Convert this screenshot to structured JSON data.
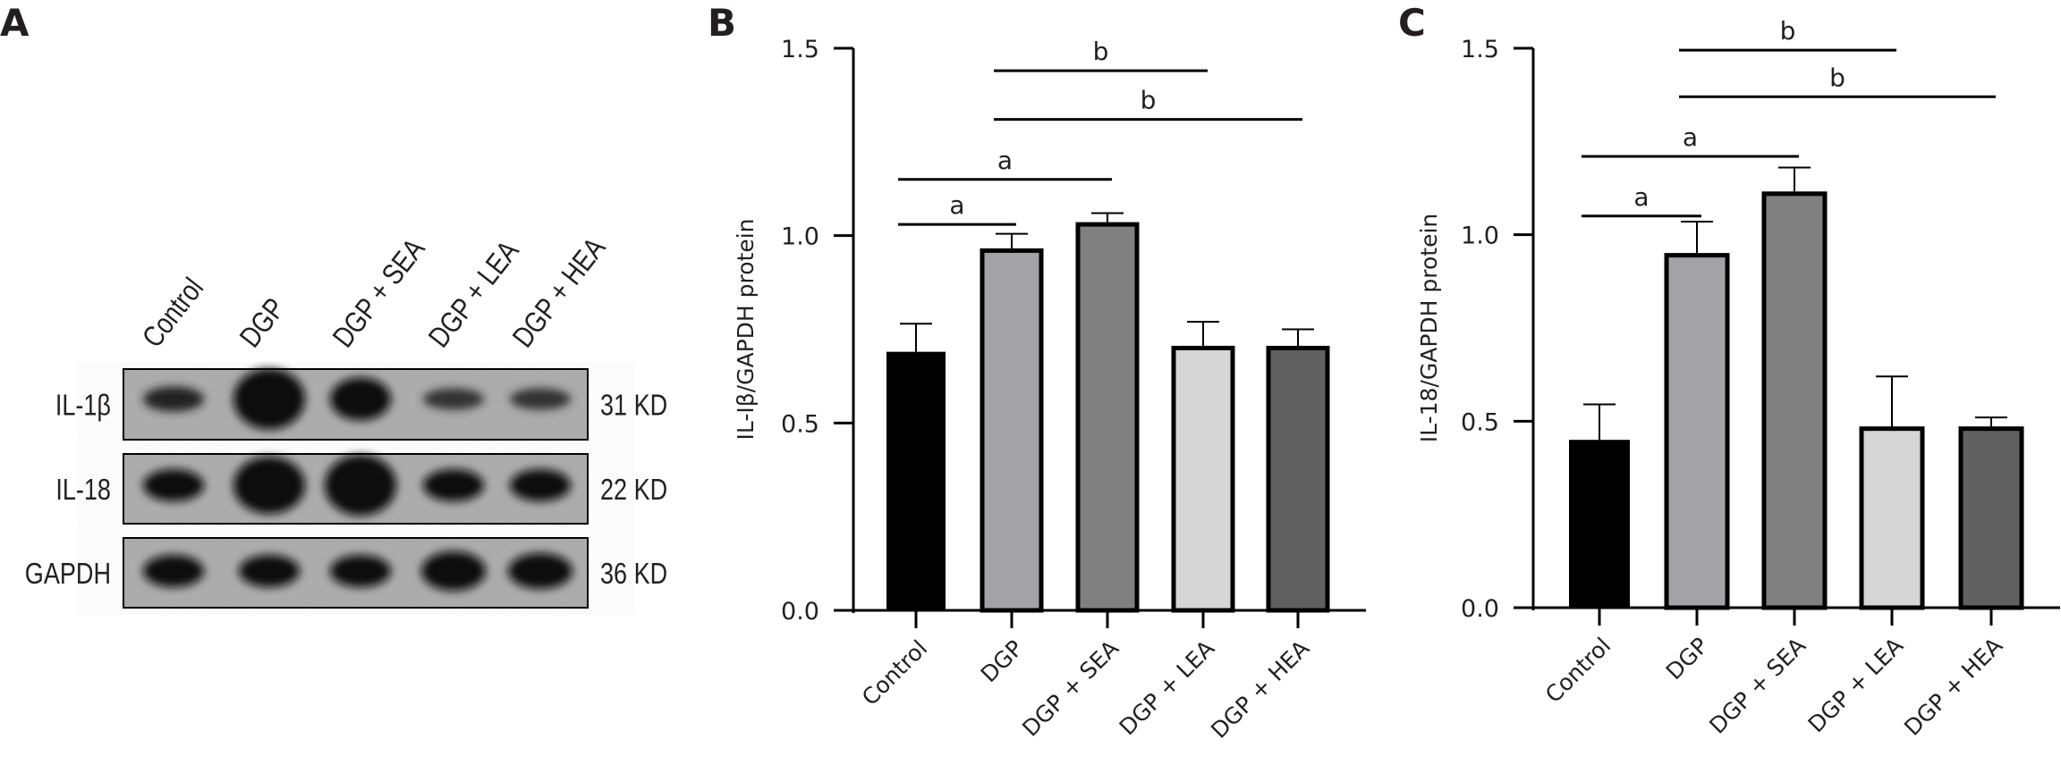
{
  "panels": {
    "a": "A",
    "b": "B",
    "c": "C"
  },
  "blot": {
    "lanes": [
      "Control",
      "DGP",
      "DGP + SEA",
      "DGP + LEA",
      "DGP + HEA"
    ],
    "rows": [
      {
        "protein": "IL-1β",
        "size": "31 KD"
      },
      {
        "protein": "IL-18",
        "size": "22 KD"
      },
      {
        "protein": "GAPDH",
        "size": "36 KD"
      }
    ]
  },
  "chart_data": [
    {
      "type": "bar",
      "panel": "B",
      "title": "",
      "xlabel": "",
      "ylabel": "IL-Iβ/GAPDH protein",
      "ylim": [
        0,
        1.5
      ],
      "yticks": [
        "0.0",
        "0.5",
        "1.0",
        "1.5"
      ],
      "categories": [
        "Control",
        "DGP",
        "DGP + SEA",
        "DGP + LEA",
        "DGP + HEA"
      ],
      "values": [
        0.69,
        0.96,
        1.03,
        0.7,
        0.7
      ],
      "errors": [
        0.075,
        0.045,
        0.03,
        0.07,
        0.05
      ],
      "colors": [
        "#000000",
        "#a3a3a7",
        "#808080",
        "#d6d6d6",
        "#606060"
      ],
      "grid": false,
      "significance": [
        {
          "from": 0,
          "to": 1,
          "y": 1.03,
          "label": "a"
        },
        {
          "from": 0,
          "to": 2,
          "y": 1.15,
          "label": "a"
        },
        {
          "from": 1,
          "to": 4,
          "y": 1.31,
          "label": "b"
        },
        {
          "from": 1,
          "to": 3,
          "y": 1.44,
          "label": "b"
        }
      ]
    },
    {
      "type": "bar",
      "panel": "C",
      "title": "",
      "xlabel": "",
      "ylabel": "IL-18/GAPDH protein",
      "ylim": [
        0,
        1.5
      ],
      "yticks": [
        "0.0",
        "0.5",
        "1.0",
        "1.5"
      ],
      "categories": [
        "Control",
        "DGP",
        "DGP + SEA",
        "DGP + LEA",
        "DGP + HEA"
      ],
      "values": [
        0.45,
        0.945,
        1.11,
        0.48,
        0.48
      ],
      "errors": [
        0.095,
        0.09,
        0.07,
        0.14,
        0.03
      ],
      "colors": [
        "#000000",
        "#a3a3a7",
        "#808080",
        "#d6d6d6",
        "#606060"
      ],
      "grid": false,
      "significance": [
        {
          "from": 0,
          "to": 1,
          "y": 1.05,
          "label": "a"
        },
        {
          "from": 0,
          "to": 2,
          "y": 1.21,
          "label": "a"
        },
        {
          "from": 1,
          "to": 4,
          "y": 1.37,
          "label": "b"
        },
        {
          "from": 1,
          "to": 3,
          "y": 1.495,
          "label": "b"
        }
      ]
    }
  ]
}
